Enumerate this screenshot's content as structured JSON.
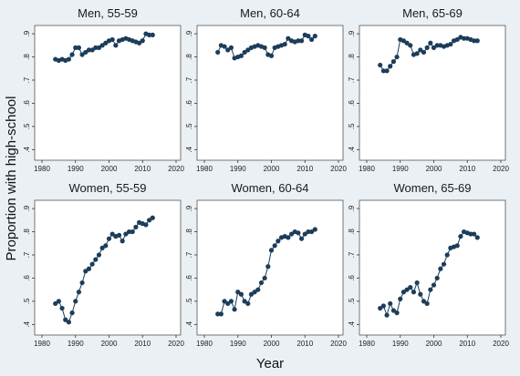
{
  "chart_data": {
    "type": "scatter",
    "ylabel": "Proportion with high-school",
    "xlabel": "Year",
    "layout": "2x3 panel grid",
    "background_color": "#eaf0f4",
    "plot_background_color": "#ffffff",
    "marker_color": "#1c3d5a",
    "grid": false,
    "xlim": [
      1980,
      2020
    ],
    "ylim": [
      0.37,
      0.92
    ],
    "x_ticks": [
      1980,
      1990,
      2000,
      2010,
      2020
    ],
    "x_tick_labels": [
      "1980",
      "1990",
      "2000",
      "2010",
      "2020"
    ],
    "y_ticks": [
      0.4,
      0.5,
      0.6,
      0.7,
      0.8,
      0.9
    ],
    "y_tick_labels": [
      ".4",
      ".5",
      ".6",
      ".7",
      ".8",
      ".9"
    ],
    "panels": [
      {
        "title": "Men, 55-59",
        "x": [
          1984,
          1985,
          1986,
          1987,
          1988,
          1989,
          1990,
          1991,
          1992,
          1993,
          1994,
          1995,
          1996,
          1997,
          1998,
          1999,
          2000,
          2001,
          2002,
          2003,
          2004,
          2005,
          2006,
          2007,
          2008,
          2009,
          2010,
          2011,
          2012,
          2013
        ],
        "y": [
          0.79,
          0.785,
          0.79,
          0.785,
          0.79,
          0.81,
          0.84,
          0.84,
          0.81,
          0.82,
          0.83,
          0.83,
          0.84,
          0.84,
          0.85,
          0.86,
          0.87,
          0.875,
          0.85,
          0.87,
          0.875,
          0.88,
          0.875,
          0.87,
          0.865,
          0.86,
          0.87,
          0.9,
          0.895,
          0.895
        ]
      },
      {
        "title": "Men, 60-64",
        "x": [
          1984,
          1985,
          1986,
          1987,
          1988,
          1989,
          1990,
          1991,
          1992,
          1993,
          1994,
          1995,
          1996,
          1997,
          1998,
          1999,
          2000,
          2001,
          2002,
          2003,
          2004,
          2005,
          2006,
          2007,
          2008,
          2009,
          2010,
          2011,
          2012,
          2013
        ],
        "y": [
          0.82,
          0.85,
          0.845,
          0.83,
          0.84,
          0.795,
          0.8,
          0.805,
          0.82,
          0.83,
          0.84,
          0.845,
          0.85,
          0.845,
          0.84,
          0.81,
          0.805,
          0.84,
          0.845,
          0.85,
          0.855,
          0.88,
          0.87,
          0.865,
          0.87,
          0.87,
          0.895,
          0.89,
          0.875,
          0.89
        ]
      },
      {
        "title": "Men, 65-69",
        "x": [
          1984,
          1985,
          1986,
          1987,
          1988,
          1989,
          1990,
          1991,
          1992,
          1993,
          1994,
          1995,
          1996,
          1997,
          1998,
          1999,
          2000,
          2001,
          2002,
          2003,
          2004,
          2005,
          2006,
          2007,
          2008,
          2009,
          2010,
          2011,
          2012,
          2013
        ],
        "y": [
          0.765,
          0.74,
          0.74,
          0.76,
          0.78,
          0.8,
          0.875,
          0.87,
          0.86,
          0.85,
          0.81,
          0.815,
          0.83,
          0.82,
          0.84,
          0.86,
          0.84,
          0.85,
          0.85,
          0.845,
          0.85,
          0.855,
          0.87,
          0.875,
          0.885,
          0.88,
          0.88,
          0.875,
          0.87,
          0.87
        ]
      },
      {
        "title": "Women, 55-59",
        "x": [
          1984,
          1985,
          1986,
          1987,
          1988,
          1989,
          1990,
          1991,
          1992,
          1993,
          1994,
          1995,
          1996,
          1997,
          1998,
          1999,
          2000,
          2001,
          2002,
          2003,
          2004,
          2005,
          2006,
          2007,
          2008,
          2009,
          2010,
          2011,
          2012,
          2013
        ],
        "y": [
          0.49,
          0.5,
          0.47,
          0.42,
          0.41,
          0.45,
          0.5,
          0.54,
          0.58,
          0.63,
          0.64,
          0.66,
          0.68,
          0.7,
          0.73,
          0.74,
          0.77,
          0.79,
          0.78,
          0.785,
          0.76,
          0.79,
          0.8,
          0.8,
          0.82,
          0.84,
          0.835,
          0.83,
          0.85,
          0.86
        ]
      },
      {
        "title": "Women, 60-64",
        "x": [
          1984,
          1985,
          1986,
          1987,
          1988,
          1989,
          1990,
          1991,
          1992,
          1993,
          1994,
          1995,
          1996,
          1997,
          1998,
          1999,
          2000,
          2001,
          2002,
          2003,
          2004,
          2005,
          2006,
          2007,
          2008,
          2009,
          2010,
          2011,
          2012,
          2013
        ],
        "y": [
          0.445,
          0.445,
          0.5,
          0.49,
          0.5,
          0.465,
          0.54,
          0.53,
          0.5,
          0.49,
          0.53,
          0.54,
          0.55,
          0.58,
          0.6,
          0.65,
          0.72,
          0.74,
          0.76,
          0.775,
          0.78,
          0.775,
          0.79,
          0.8,
          0.795,
          0.77,
          0.79,
          0.8,
          0.8,
          0.81
        ]
      },
      {
        "title": "Women, 65-69",
        "x": [
          1984,
          1985,
          1986,
          1987,
          1988,
          1989,
          1990,
          1991,
          1992,
          1993,
          1994,
          1995,
          1996,
          1997,
          1998,
          1999,
          2000,
          2001,
          2002,
          2003,
          2004,
          2005,
          2006,
          2007,
          2008,
          2009,
          2010,
          2011,
          2012,
          2013
        ],
        "y": [
          0.47,
          0.48,
          0.44,
          0.49,
          0.46,
          0.45,
          0.51,
          0.54,
          0.55,
          0.56,
          0.54,
          0.58,
          0.53,
          0.5,
          0.49,
          0.55,
          0.57,
          0.6,
          0.64,
          0.66,
          0.7,
          0.73,
          0.735,
          0.74,
          0.78,
          0.8,
          0.795,
          0.79,
          0.79,
          0.775
        ]
      }
    ]
  }
}
